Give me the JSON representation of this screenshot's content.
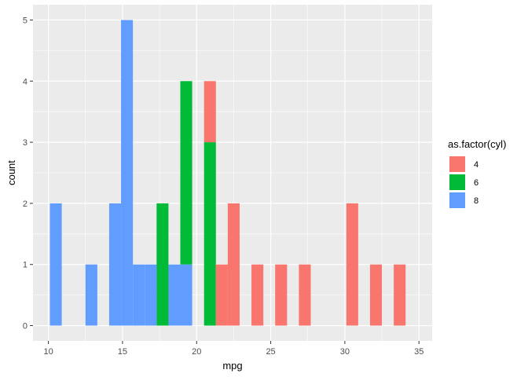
{
  "chart_data": {
    "type": "bar",
    "subtype": "stacked-histogram",
    "xlabel": "mpg",
    "ylabel": "count",
    "xlim": [
      8.96,
      35.89
    ],
    "ylim": [
      -0.25,
      5.25
    ],
    "x_ticks": [
      10,
      15,
      20,
      25,
      30,
      35
    ],
    "y_ticks": [
      0,
      1,
      2,
      3,
      4,
      5
    ],
    "grid": true,
    "legend_position": "right",
    "legend_title": "as.factor(cyl)",
    "series": [
      {
        "name": "4",
        "color": "#F8766D",
        "bins": [
          {
            "x0": 20.5,
            "x1": 21.3,
            "count": 1
          },
          {
            "x0": 21.3,
            "x1": 22.1,
            "count": 1
          },
          {
            "x0": 22.1,
            "x1": 22.9,
            "count": 2
          },
          {
            "x0": 23.7,
            "x1": 24.5,
            "count": 1
          },
          {
            "x0": 25.3,
            "x1": 26.1,
            "count": 1
          },
          {
            "x0": 26.9,
            "x1": 27.7,
            "count": 1
          },
          {
            "x0": 30.1,
            "x1": 30.9,
            "count": 2
          },
          {
            "x0": 31.7,
            "x1": 32.5,
            "count": 1
          },
          {
            "x0": 33.3,
            "x1": 34.1,
            "count": 1
          }
        ]
      },
      {
        "name": "6",
        "color": "#00BA38",
        "bins": [
          {
            "x0": 17.3,
            "x1": 18.1,
            "count": 2
          },
          {
            "x0": 18.9,
            "x1": 19.7,
            "count": 3
          },
          {
            "x0": 20.5,
            "x1": 21.3,
            "count": 3
          }
        ]
      },
      {
        "name": "8",
        "color": "#619CFF",
        "bins": [
          {
            "x0": 10.1,
            "x1": 10.9,
            "count": 2
          },
          {
            "x0": 12.5,
            "x1": 13.3,
            "count": 1
          },
          {
            "x0": 14.1,
            "x1": 14.9,
            "count": 2
          },
          {
            "x0": 14.9,
            "x1": 15.7,
            "count": 5
          },
          {
            "x0": 15.7,
            "x1": 16.5,
            "count": 1
          },
          {
            "x0": 16.5,
            "x1": 17.3,
            "count": 1
          },
          {
            "x0": 18.1,
            "x1": 18.9,
            "count": 1
          },
          {
            "x0": 18.9,
            "x1": 19.7,
            "count": 1
          }
        ]
      }
    ]
  }
}
